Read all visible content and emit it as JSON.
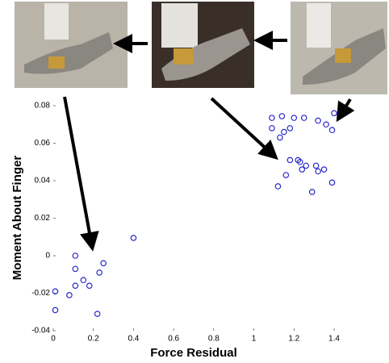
{
  "chart_data": {
    "type": "scatter",
    "xlabel": "Force Residual",
    "ylabel": "Moment About Finger",
    "color": "#2a2acc",
    "xlim": [
      0,
      1.4
    ],
    "xticks": [
      0,
      0.2,
      0.4,
      0.6,
      0.8,
      1,
      1.2,
      1.4
    ],
    "ylim": [
      -0.04,
      0.08
    ],
    "yticks": [
      -0.04,
      -0.02,
      0,
      0.02,
      0.04,
      0.06,
      0.08
    ],
    "x": [
      0.01,
      0.01,
      0.11,
      0.11,
      0.25,
      0.08,
      0.11,
      0.15,
      0.18,
      0.23,
      0.22,
      0.4,
      1.09,
      1.14,
      1.2,
      1.25,
      1.32,
      1.36,
      1.39,
      1.4,
      1.09,
      1.15,
      1.13,
      1.18,
      1.18,
      1.22,
      1.23,
      1.16,
      1.24,
      1.26,
      1.31,
      1.32,
      1.35,
      1.39,
      1.29,
      1.12
    ],
    "values": [
      -0.019,
      -0.029,
      0.0,
      -0.007,
      -0.004,
      -0.021,
      -0.016,
      -0.013,
      -0.016,
      -0.009,
      -0.031,
      0.0095,
      0.0735,
      0.0744,
      0.0735,
      0.0735,
      0.072,
      0.07,
      0.067,
      0.076,
      0.068,
      0.066,
      0.063,
      0.068,
      0.051,
      0.051,
      0.05,
      0.043,
      0.046,
      0.048,
      0.048,
      0.045,
      0.046,
      0.039,
      0.034,
      0.037
    ]
  }
}
